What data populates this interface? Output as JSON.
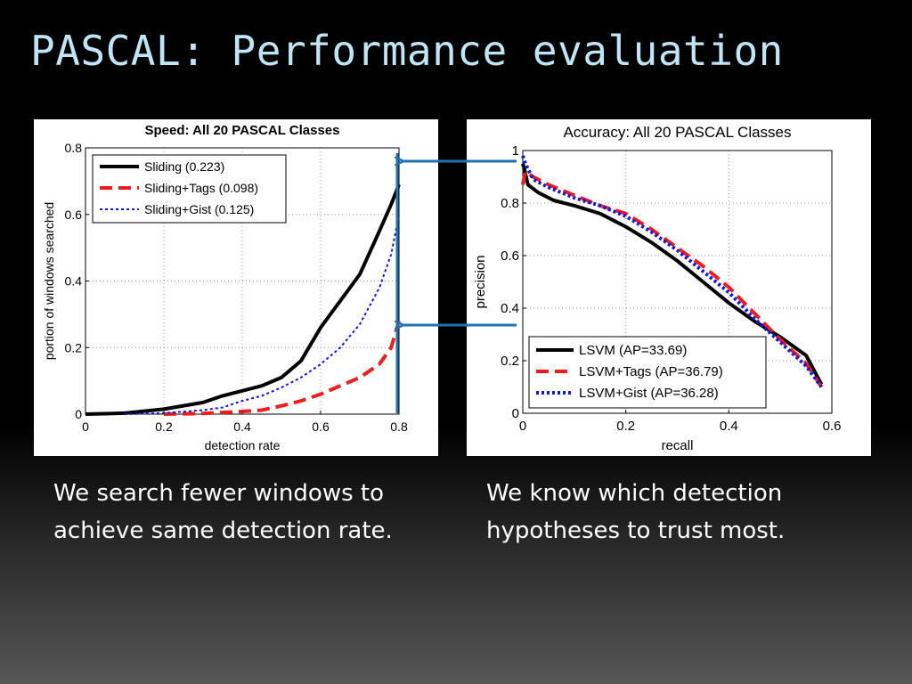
{
  "slide": {
    "title": "PASCAL: Performance evaluation",
    "caption_left": "We search fewer windows to achieve same detection rate.",
    "caption_right": "We know which detection hypotheses to trust most."
  },
  "colors": {
    "title": "#bfe6f6",
    "arrow": "#1e73b4",
    "black_series": "#000000",
    "red_series": "#ee1c1c",
    "blue_series": "#1414e0"
  },
  "chart_data": [
    {
      "type": "line",
      "title": "Speed: All 20 PASCAL Classes",
      "xlabel": "detection rate",
      "ylabel": "portion of windows searched",
      "xlim": [
        0,
        0.8
      ],
      "ylim": [
        0,
        0.8
      ],
      "xticks": [
        "0",
        "0.2",
        "0.4",
        "0.6",
        "0.8"
      ],
      "yticks": [
        "0",
        "0.2",
        "0.4",
        "0.6",
        "0.8"
      ],
      "grid": true,
      "legend_position": "top-left",
      "series": [
        {
          "name": "Sliding (0.223)",
          "color": "#000000",
          "dash": "solid",
          "width": 4,
          "x": [
            0,
            0.1,
            0.2,
            0.3,
            0.35,
            0.4,
            0.45,
            0.5,
            0.55,
            0.6,
            0.65,
            0.7,
            0.75,
            0.78,
            0.8
          ],
          "y": [
            0,
            0.003,
            0.015,
            0.035,
            0.055,
            0.07,
            0.085,
            0.11,
            0.16,
            0.26,
            0.34,
            0.42,
            0.55,
            0.63,
            0.69
          ]
        },
        {
          "name": "Sliding+Tags (0.098)",
          "color": "#ee1c1c",
          "dash": "dashed",
          "width": 4,
          "x": [
            0.2,
            0.3,
            0.4,
            0.45,
            0.5,
            0.55,
            0.6,
            0.65,
            0.7,
            0.75,
            0.78,
            0.8
          ],
          "y": [
            0,
            0.002,
            0.008,
            0.012,
            0.025,
            0.04,
            0.06,
            0.085,
            0.11,
            0.15,
            0.2,
            0.28
          ]
        },
        {
          "name": "Sliding+Gist (0.125)",
          "color": "#1414e0",
          "dash": "dotted",
          "width": 2,
          "x": [
            0.1,
            0.2,
            0.3,
            0.35,
            0.4,
            0.45,
            0.5,
            0.55,
            0.6,
            0.65,
            0.7,
            0.75,
            0.78,
            0.8
          ],
          "y": [
            0,
            0.003,
            0.012,
            0.02,
            0.04,
            0.055,
            0.08,
            0.11,
            0.15,
            0.2,
            0.27,
            0.38,
            0.48,
            0.6
          ]
        }
      ]
    },
    {
      "type": "line",
      "title": "Accuracy: All 20 PASCAL Classes",
      "xlabel": "recall",
      "ylabel": "precision",
      "xlim": [
        0,
        0.6
      ],
      "ylim": [
        0,
        1
      ],
      "xticks": [
        "0",
        "0.2",
        "0.4",
        "0.6"
      ],
      "yticks": [
        "0",
        "0.2",
        "0.4",
        "0.6",
        "0.8",
        "1"
      ],
      "grid": true,
      "legend_position": "bottom-left",
      "series": [
        {
          "name": "LSVM (AP=33.69)",
          "color": "#000000",
          "dash": "solid",
          "width": 4,
          "x": [
            0,
            0.003,
            0.01,
            0.03,
            0.06,
            0.1,
            0.15,
            0.2,
            0.25,
            0.3,
            0.35,
            0.4,
            0.45,
            0.5,
            0.55,
            0.58
          ],
          "y": [
            0.95,
            0.93,
            0.87,
            0.84,
            0.81,
            0.79,
            0.76,
            0.71,
            0.65,
            0.58,
            0.5,
            0.42,
            0.35,
            0.29,
            0.22,
            0.11
          ]
        },
        {
          "name": "LSVM+Tags (AP=36.79)",
          "color": "#ee1c1c",
          "dash": "dashed",
          "width": 4,
          "x": [
            0,
            0.005,
            0.02,
            0.05,
            0.1,
            0.15,
            0.2,
            0.25,
            0.3,
            0.35,
            0.4,
            0.45,
            0.5,
            0.55,
            0.58
          ],
          "y": [
            0.87,
            0.92,
            0.9,
            0.87,
            0.83,
            0.79,
            0.76,
            0.7,
            0.63,
            0.56,
            0.48,
            0.38,
            0.28,
            0.19,
            0.1
          ]
        },
        {
          "name": "LSVM+Gist (AP=36.28)",
          "color": "#1414e0",
          "dash": "dotted",
          "width": 4,
          "x": [
            0,
            0.005,
            0.02,
            0.05,
            0.1,
            0.15,
            0.2,
            0.25,
            0.3,
            0.35,
            0.4,
            0.45,
            0.5,
            0.55,
            0.58
          ],
          "y": [
            0.98,
            0.95,
            0.89,
            0.86,
            0.82,
            0.79,
            0.75,
            0.69,
            0.62,
            0.54,
            0.46,
            0.36,
            0.27,
            0.18,
            0.1
          ]
        }
      ]
    }
  ]
}
